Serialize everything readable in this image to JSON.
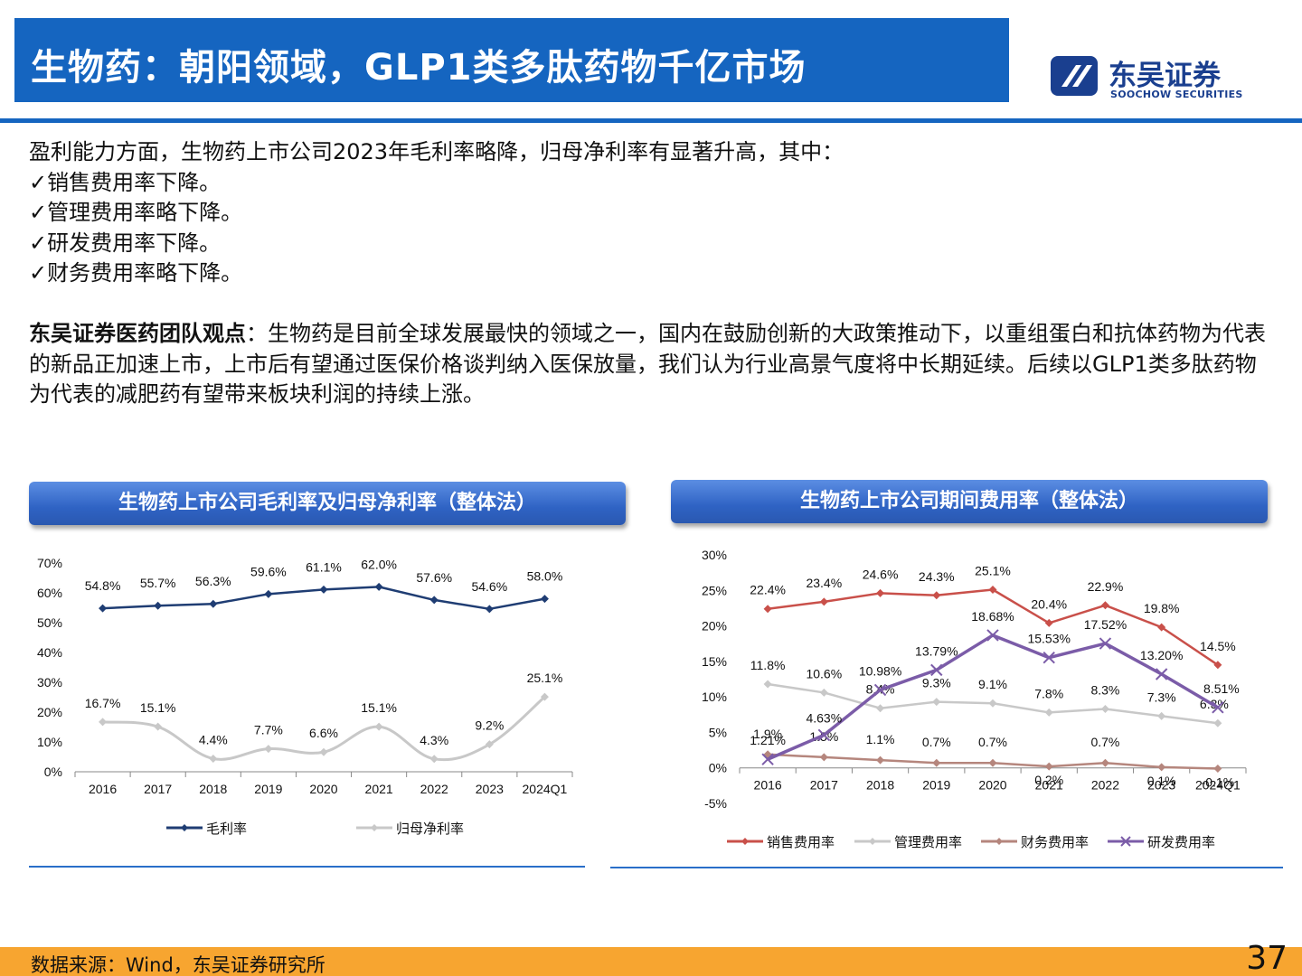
{
  "header": {
    "title": "生物药：朝阳领域，GLP1类多肽药物千亿市场",
    "logo_cn": "东吴证券",
    "logo_en": "SOOCHOW SECURITIES"
  },
  "body": {
    "intro": "盈利能力方面，生物药上市公司2023年毛利率略降，归母净利率有显著升高，其中：",
    "bullets": [
      "✓销售费用率下降。",
      "✓管理费用率略下降。",
      "✓研发费用率下降。",
      "✓财务费用率略下降。"
    ],
    "view_label": "东吴证券医药团队观点",
    "view_text": "：生物药是目前全球发展最快的领域之一，国内在鼓励创新的大政策推动下，以重组蛋白和抗体药物为代表的新品正加速上市，上市后有望通过医保价格谈判纳入医保放量，我们认为行业高景气度将中长期延续。后续以GLP1类多肽药物为代表的减肥药有望带来板块利润的持续上涨。"
  },
  "charts": {
    "left_title": "生物药上市公司毛利率及归母净利率（整体法）",
    "right_title": "生物药上市公司期间费用率（整体法）"
  },
  "chart_data": [
    {
      "type": "line",
      "title": "生物药上市公司毛利率及归母净利率（整体法）",
      "categories": [
        "2016",
        "2017",
        "2018",
        "2019",
        "2020",
        "2021",
        "2022",
        "2023",
        "2024Q1"
      ],
      "ylim": [
        0,
        70
      ],
      "yticks": [
        "0%",
        "10%",
        "20%",
        "30%",
        "40%",
        "50%",
        "60%",
        "70%"
      ],
      "legend_position": "bottom",
      "series": [
        {
          "name": "毛利率",
          "color": "#1F3D73",
          "marker": "diamond",
          "smooth": false,
          "values": [
            54.8,
            55.7,
            56.3,
            59.6,
            61.1,
            62.0,
            57.6,
            54.6,
            58.0
          ],
          "labels": [
            "54.8%",
            "55.7%",
            "56.3%",
            "59.6%",
            "61.1%",
            "62.0%",
            "57.6%",
            "54.6%",
            "58.0%"
          ]
        },
        {
          "name": "归母净利率",
          "color": "#C8C8C8",
          "marker": "diamond",
          "smooth": true,
          "values": [
            16.7,
            15.1,
            4.4,
            7.7,
            6.6,
            15.1,
            4.3,
            9.2,
            25.1
          ],
          "labels": [
            "16.7%",
            "15.1%",
            "4.4%",
            "7.7%",
            "6.6%",
            "15.1%",
            "4.3%",
            "9.2%",
            "25.1%"
          ]
        }
      ]
    },
    {
      "type": "line",
      "title": "生物药上市公司期间费用率（整体法）",
      "categories": [
        "2016",
        "2017",
        "2018",
        "2019",
        "2020",
        "2021",
        "2022",
        "2023",
        "2024Q1"
      ],
      "ylim": [
        -5,
        30
      ],
      "yticks": [
        "-5%",
        "0%",
        "5%",
        "10%",
        "15%",
        "20%",
        "25%",
        "30%"
      ],
      "legend_position": "bottom",
      "series": [
        {
          "name": "销售费用率",
          "color": "#C9504A",
          "marker": "diamond",
          "smooth": false,
          "values": [
            22.4,
            23.4,
            24.6,
            24.3,
            25.1,
            20.4,
            22.9,
            19.8,
            14.5
          ],
          "labels": [
            "22.4%",
            "23.4%",
            "24.6%",
            "24.3%",
            "25.1%",
            "20.4%",
            "22.9%",
            "19.8%",
            "14.5%"
          ]
        },
        {
          "name": "管理费用率",
          "color": "#C8C8C8",
          "marker": "diamond",
          "smooth": false,
          "values": [
            11.8,
            10.6,
            8.4,
            9.3,
            9.1,
            7.8,
            8.3,
            7.3,
            6.3
          ],
          "labels": [
            "11.8%",
            "10.6%",
            "8.4%",
            "9.3%",
            "9.1%",
            "7.8%",
            "8.3%",
            "7.3%",
            "6.3%"
          ]
        },
        {
          "name": "财务费用率",
          "color": "#B5867D",
          "marker": "diamond",
          "smooth": false,
          "values": [
            1.9,
            1.5,
            1.1,
            0.7,
            0.7,
            0.2,
            0.7,
            0.1,
            -0.1
          ],
          "labels": [
            "1.9%",
            "1.5%",
            "1.1%",
            "0.7%",
            "0.7%",
            "0.2%",
            "0.7%",
            "0.1%",
            "-0.1%"
          ]
        },
        {
          "name": "研发费用率",
          "color": "#7B5CA8",
          "marker": "x",
          "smooth": false,
          "values": [
            1.21,
            4.63,
            10.98,
            13.79,
            18.68,
            15.53,
            17.52,
            13.2,
            8.51
          ],
          "labels": [
            "1.21%",
            "4.63%",
            "10.98%",
            "13.79%",
            "18.68%",
            "15.53%",
            "17.52%",
            "13.20%",
            "8.51%"
          ]
        }
      ]
    }
  ],
  "footer": {
    "source": "数据来源：Wind，东吴证券研究所",
    "page": "37"
  }
}
